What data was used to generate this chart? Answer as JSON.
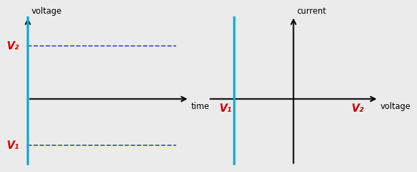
{
  "bg_color": "#ebebeb",
  "left_panel": {
    "xlabel": "time",
    "ylabel": "voltage",
    "v1_label": "V₁",
    "v2_label": "V₂",
    "xlim": [
      0,
      10
    ],
    "ylim": [
      -4,
      5
    ],
    "xaxis_y": 0,
    "v1_y": -2.8,
    "v2_y": 3.2,
    "cyan_x": 0.3,
    "dashed_color": "#3344cc",
    "cyan_color": "#1aabcc",
    "label_color": "#cc0000",
    "axis_color": "black"
  },
  "right_panel": {
    "xlabel": "voltage",
    "ylabel": "current",
    "v1_label": "V₁",
    "v2_label": "V₂",
    "xlim": [
      -5,
      5
    ],
    "ylim": [
      -4,
      5
    ],
    "v1_x": -3.5,
    "v2_x": 3.8,
    "cyan_color": "#1aabcc",
    "label_color": "#cc0000",
    "axis_color": "black"
  }
}
